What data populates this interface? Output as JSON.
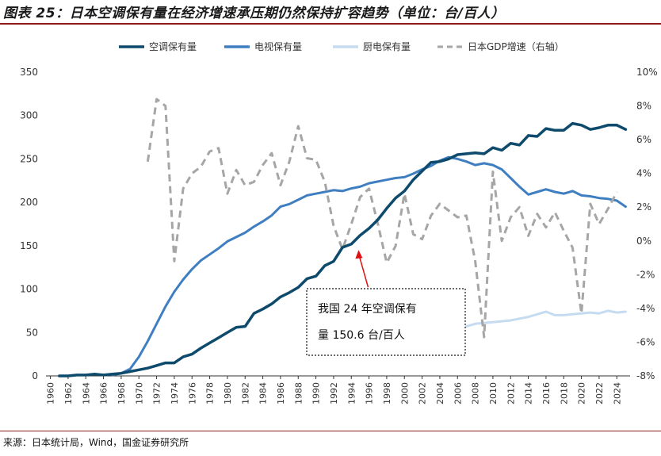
{
  "title": "图表 25：日本空调保有量在经济增速承压期仍然保持扩容趋势（单位：台/百人）",
  "source": "来源：日本统计局，Wind，国金证券研究所",
  "chart_data": {
    "type": "line",
    "x": [
      1961,
      1962,
      1963,
      1964,
      1965,
      1966,
      1967,
      1968,
      1969,
      1970,
      1971,
      1972,
      1973,
      1974,
      1975,
      1976,
      1977,
      1978,
      1979,
      1980,
      1981,
      1982,
      1983,
      1984,
      1985,
      1986,
      1987,
      1988,
      1989,
      1990,
      1991,
      1992,
      1993,
      1994,
      1995,
      1996,
      1997,
      1998,
      1999,
      2000,
      2001,
      2002,
      2003,
      2004,
      2005,
      2006,
      2007,
      2008,
      2009,
      2010,
      2011,
      2012,
      2013,
      2014,
      2015,
      2016,
      2017,
      2018,
      2019,
      2020,
      2021,
      2022,
      2023,
      2024,
      2025
    ],
    "x_ticks": [
      "1960",
      "1962",
      "1964",
      "1966",
      "1968",
      "1970",
      "1972",
      "1974",
      "1976",
      "1978",
      "1980",
      "1982",
      "1984",
      "1986",
      "1988",
      "1990",
      "1992",
      "1994",
      "1996",
      "1998",
      "2000",
      "2002",
      "2004",
      "2006",
      "2008",
      "2010",
      "2012",
      "2014",
      "2016",
      "2018",
      "2020",
      "2022",
      "2024"
    ],
    "x_range": [
      1959.5,
      2025.5
    ],
    "y_left": {
      "range": [
        0,
        350
      ],
      "ticks": [
        "0",
        "50",
        "100",
        "150",
        "200",
        "250",
        "300",
        "350"
      ]
    },
    "y_right": {
      "range": [
        -8,
        10
      ],
      "ticks": [
        "-8%",
        "-6%",
        "-4%",
        "-2%",
        "0%",
        "2%",
        "4%",
        "6%",
        "8%",
        "10%"
      ]
    },
    "series": [
      {
        "name": "空调保有量",
        "axis": "left",
        "color": "#0d4a6b",
        "style": "solid",
        "values": [
          0,
          0,
          1,
          1,
          2,
          1,
          2,
          3,
          5,
          7,
          9,
          12,
          15,
          15,
          22,
          25,
          32,
          38,
          44,
          50,
          56,
          57,
          72,
          77,
          83,
          91,
          96,
          102,
          112,
          115,
          127,
          132,
          148,
          152,
          162,
          170,
          180,
          193,
          205,
          213,
          226,
          236,
          246,
          247,
          250,
          255,
          256,
          257,
          256,
          263,
          260,
          268,
          266,
          277,
          276,
          285,
          283,
          283,
          291,
          289,
          284,
          286,
          289,
          289,
          284
        ]
      },
      {
        "name": "电视保有量",
        "axis": "left",
        "color": "#3f7fc1",
        "style": "solid",
        "values": [
          null,
          null,
          null,
          null,
          null,
          null,
          1,
          3,
          8,
          22,
          40,
          60,
          80,
          97,
          111,
          123,
          133,
          140,
          147,
          155,
          160,
          165,
          172,
          178,
          185,
          195,
          198,
          203,
          208,
          210,
          212,
          214,
          213,
          216,
          218,
          222,
          224,
          226,
          228,
          229,
          233,
          238,
          242,
          248,
          252,
          250,
          247,
          243,
          245,
          243,
          238,
          228,
          218,
          209,
          212,
          215,
          212,
          210,
          213,
          208,
          207,
          205,
          204,
          202,
          195
        ]
      },
      {
        "name": "厨电保有量",
        "axis": "left",
        "color": "#c5dcf0",
        "style": "solid",
        "values": [
          null,
          null,
          null,
          null,
          null,
          null,
          null,
          null,
          null,
          null,
          null,
          null,
          null,
          null,
          null,
          null,
          null,
          null,
          null,
          null,
          null,
          null,
          null,
          null,
          null,
          null,
          null,
          null,
          null,
          null,
          null,
          null,
          null,
          null,
          null,
          null,
          null,
          null,
          null,
          null,
          null,
          null,
          null,
          null,
          null,
          54,
          57,
          60,
          61,
          62,
          63,
          64,
          66,
          68,
          71,
          74,
          70,
          70,
          71,
          72,
          73,
          72,
          75,
          73,
          74
        ]
      },
      {
        "name": "日本GDP增速（右轴）",
        "axis": "right",
        "color": "#a6a6a6",
        "style": "dashed",
        "values": [
          null,
          null,
          null,
          null,
          null,
          null,
          null,
          null,
          null,
          null,
          4.7,
          8.4,
          8.0,
          -1.2,
          3.1,
          4.0,
          4.4,
          5.3,
          5.5,
          2.8,
          4.2,
          3.3,
          3.5,
          4.5,
          5.2,
          3.3,
          4.7,
          6.8,
          4.9,
          4.8,
          3.5,
          0.9,
          -0.5,
          1.0,
          2.6,
          3.1,
          1.0,
          -1.3,
          -0.3,
          2.8,
          0.4,
          0.1,
          1.5,
          2.2,
          1.8,
          1.4,
          1.5,
          -1.2,
          -5.7,
          4.1,
          0.0,
          1.4,
          2.0,
          0.3,
          1.6,
          0.8,
          1.7,
          0.6,
          -0.4,
          -4.3,
          2.2,
          1.0,
          1.9,
          2.9,
          null
        ]
      }
    ],
    "annotation": {
      "text_line1": "我国 24 年空调保有",
      "text_line2": "量 150.6 台/百人",
      "target_x": 1995,
      "target_y": 150.6
    }
  }
}
